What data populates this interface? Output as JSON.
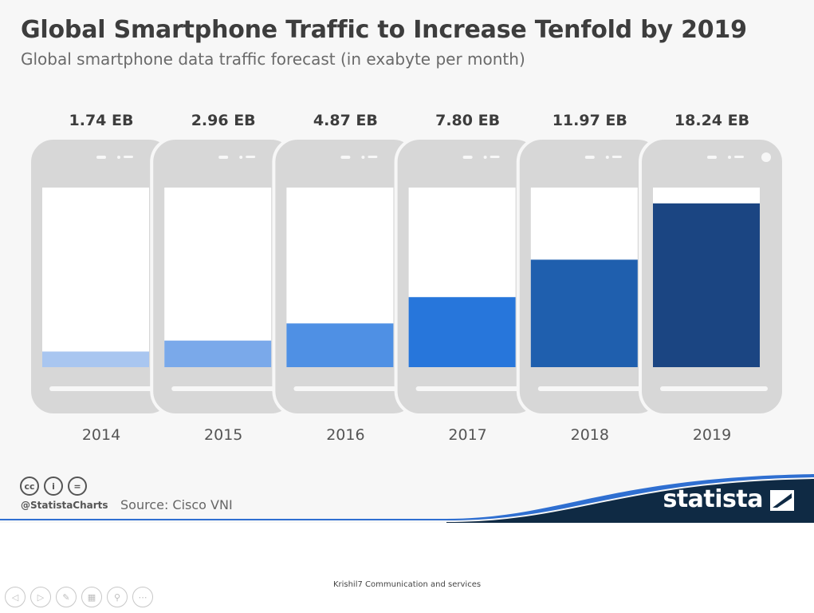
{
  "header": {
    "title": "Global Smartphone Traffic to Increase Tenfold by 2019",
    "subtitle": "Global smartphone data traffic forecast (in exabyte per month)"
  },
  "chart_data": {
    "type": "bar",
    "title": "Global Smartphone Traffic to Increase Tenfold by 2019",
    "subtitle": "Global smartphone data traffic forecast (in exabyte per month)",
    "categories": [
      "2014",
      "2015",
      "2016",
      "2017",
      "2018",
      "2019"
    ],
    "values": [
      1.74,
      2.96,
      4.87,
      7.8,
      11.97,
      18.24
    ],
    "data_labels": [
      "1.74 EB",
      "2.96 EB",
      "4.87 EB",
      "7.80 EB",
      "11.97 EB",
      "18.24 EB"
    ],
    "unit": "EB",
    "ylim": [
      0,
      20
    ],
    "xlabel": "",
    "ylabel": "",
    "grid": false,
    "legend": "none",
    "bar_colors": [
      "#a9c6f0",
      "#7aa9ea",
      "#4f90e4",
      "#2776db",
      "#1f5fae",
      "#1b4582"
    ]
  },
  "footer": {
    "handle": "@StatistaCharts",
    "source": "Source: Cisco VNI",
    "license_icons": [
      "cc-icon",
      "by-icon",
      "nd-icon"
    ],
    "license_glyphs": [
      "cc",
      "i",
      "="
    ],
    "brand": "statista",
    "brand_color": "#0f2a44",
    "accent_color": "#2f6fd1"
  },
  "slide_footer": {
    "company": "Krishil7 Communication and services",
    "nav_icons": [
      "previous-icon",
      "next-icon",
      "pen-icon",
      "slides-icon",
      "zoom-icon",
      "more-icon"
    ],
    "nav_glyphs": [
      "◁",
      "▷",
      "✎",
      "▦",
      "⚲",
      "⋯"
    ]
  }
}
